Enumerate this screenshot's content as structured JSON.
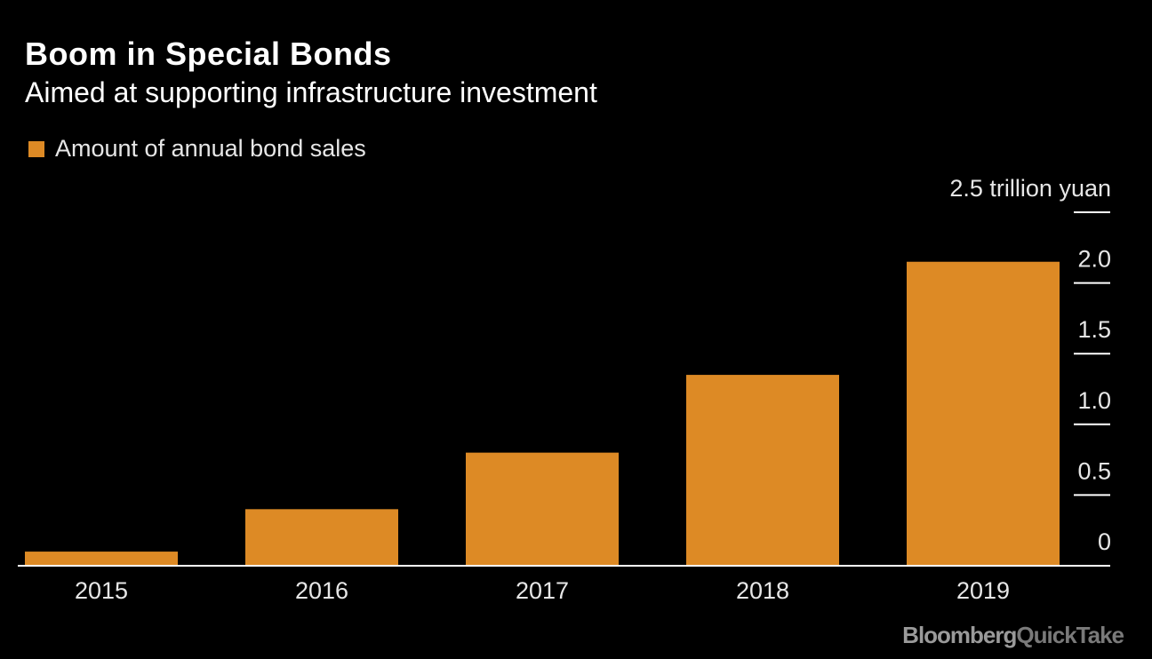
{
  "header": {
    "title": "Boom in Special Bonds",
    "subtitle": "Aimed at supporting infrastructure investment"
  },
  "legend": {
    "label": "Amount of annual bond sales",
    "color": "#dd8a25"
  },
  "chart_data": {
    "type": "bar",
    "title": "Boom in Special Bonds",
    "subtitle": "Aimed at supporting infrastructure investment",
    "categories": [
      "2015",
      "2016",
      "2017",
      "2018",
      "2019"
    ],
    "series": [
      {
        "name": "Amount of annual bond sales",
        "values": [
          0.1,
          0.4,
          0.8,
          1.35,
          2.15
        ],
        "color": "#dd8a25"
      }
    ],
    "y_unit_label": "2.5 trillion yuan",
    "y_ticks": [
      0,
      0.5,
      1.0,
      1.5,
      2.0,
      2.5
    ],
    "y_tick_labels": [
      "0",
      "0.5",
      "1.0",
      "1.5",
      "2.0",
      "2.5 trillion yuan"
    ],
    "ylim": [
      0,
      2.5
    ],
    "y_axis_position": "right",
    "grid": false,
    "legend_position": "top-left"
  },
  "branding": {
    "part1": "Bloomberg",
    "part2": "QuickTake"
  }
}
